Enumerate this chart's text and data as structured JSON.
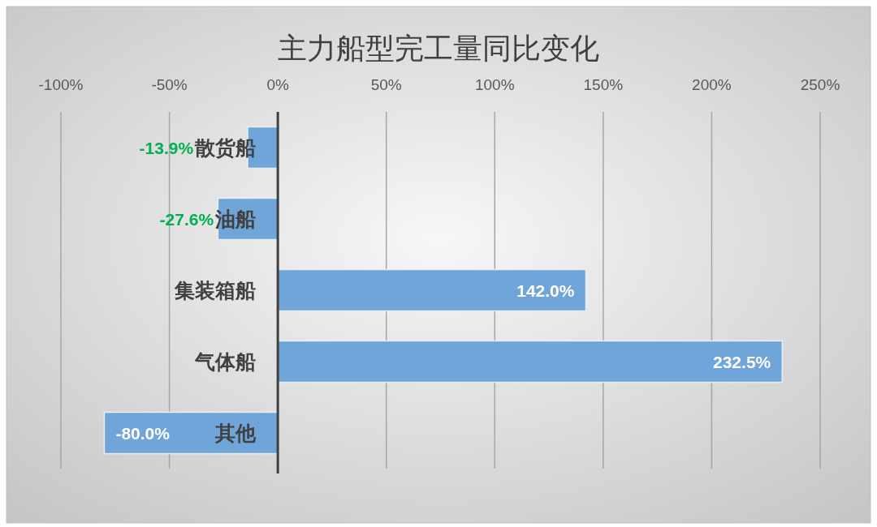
{
  "chart_data": {
    "type": "bar",
    "orientation": "horizontal",
    "title": "主力船型完工量同比变化",
    "categories": [
      "散货船",
      "油船",
      "集装箱船",
      "气体船",
      "其他"
    ],
    "values": [
      -13.9,
      -27.6,
      142.0,
      232.5,
      -80.0
    ],
    "color": "#6fa5d8",
    "value_labels": [
      "-13.9%",
      "-27.6%",
      "142.0%",
      "232.5%",
      "-80.0%"
    ],
    "xlim": [
      -100,
      250
    ],
    "xticks": [
      {
        "value": -100,
        "label": "-100%"
      },
      {
        "value": -50,
        "label": "-50%"
      },
      {
        "value": 0,
        "label": "0%"
      },
      {
        "value": 50,
        "label": "50%"
      },
      {
        "value": 100,
        "label": "100%"
      },
      {
        "value": 150,
        "label": "150%"
      },
      {
        "value": 200,
        "label": "200%"
      },
      {
        "value": 250,
        "label": "250%"
      }
    ],
    "grid": "x"
  }
}
